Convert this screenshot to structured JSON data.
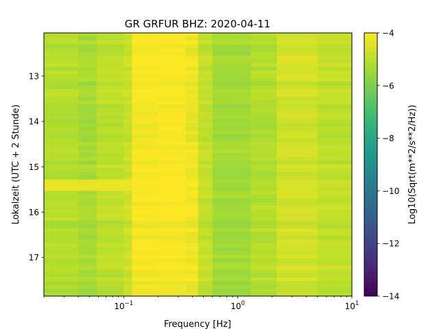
{
  "chart_data": {
    "type": "heatmap",
    "title": "GR GRFUR  BHZ: 2020-04-11",
    "xlabel": "Frequency [Hz]",
    "ylabel": "Lokalzeit (UTC + 2 Stunde)",
    "colorbar_label": "Log10(Sqrt(m**2/s**2/Hz))",
    "x_scale": "log",
    "xlim": [
      0.02,
      10
    ],
    "ylim": [
      12.05,
      17.85
    ],
    "y_inverted": true,
    "x_ticks": [
      {
        "value": 0.1,
        "base": "10",
        "exp": "−1"
      },
      {
        "value": 1,
        "base": "10",
        "exp": "0"
      },
      {
        "value": 10,
        "base": "10",
        "exp": "1"
      }
    ],
    "y_ticks": [
      {
        "value": 13,
        "label": "13"
      },
      {
        "value": 14,
        "label": "14"
      },
      {
        "value": 15,
        "label": "15"
      },
      {
        "value": 16,
        "label": "16"
      },
      {
        "value": 17,
        "label": "17"
      }
    ],
    "colorbar": {
      "colormap": "viridis",
      "range": [
        -14,
        -4
      ],
      "ticks": [
        {
          "value": -4,
          "label": "−4"
        },
        {
          "value": -6,
          "label": "−6"
        },
        {
          "value": -8,
          "label": "−8"
        },
        {
          "value": -10,
          "label": "−10"
        },
        {
          "value": -12,
          "label": "−12"
        },
        {
          "value": -14,
          "label": "−14"
        }
      ]
    },
    "frequency_bands": [
      {
        "fmin": 0.02,
        "fmax": 0.04,
        "level": -5.1
      },
      {
        "fmin": 0.04,
        "fmax": 0.058,
        "level": -5.35
      },
      {
        "fmin": 0.058,
        "fmax": 0.1,
        "level": -5.0
      },
      {
        "fmin": 0.1,
        "fmax": 0.118,
        "level": -4.8
      },
      {
        "fmin": 0.118,
        "fmax": 0.2,
        "level": -4.1
      },
      {
        "fmin": 0.2,
        "fmax": 0.35,
        "level": -4.05
      },
      {
        "fmin": 0.35,
        "fmax": 0.45,
        "level": -4.25
      },
      {
        "fmin": 0.45,
        "fmax": 0.6,
        "level": -4.9
      },
      {
        "fmin": 0.6,
        "fmax": 1.3,
        "level": -5.4
      },
      {
        "fmin": 1.3,
        "fmax": 2.2,
        "level": -5.15
      },
      {
        "fmin": 2.2,
        "fmax": 5.0,
        "level": -4.7
      },
      {
        "fmin": 5.0,
        "fmax": 10,
        "level": -4.95
      }
    ],
    "high_power_interval": {
      "tmin": 15.3,
      "tmax": 15.5,
      "fmax": 0.12,
      "level": -4.3
    }
  }
}
